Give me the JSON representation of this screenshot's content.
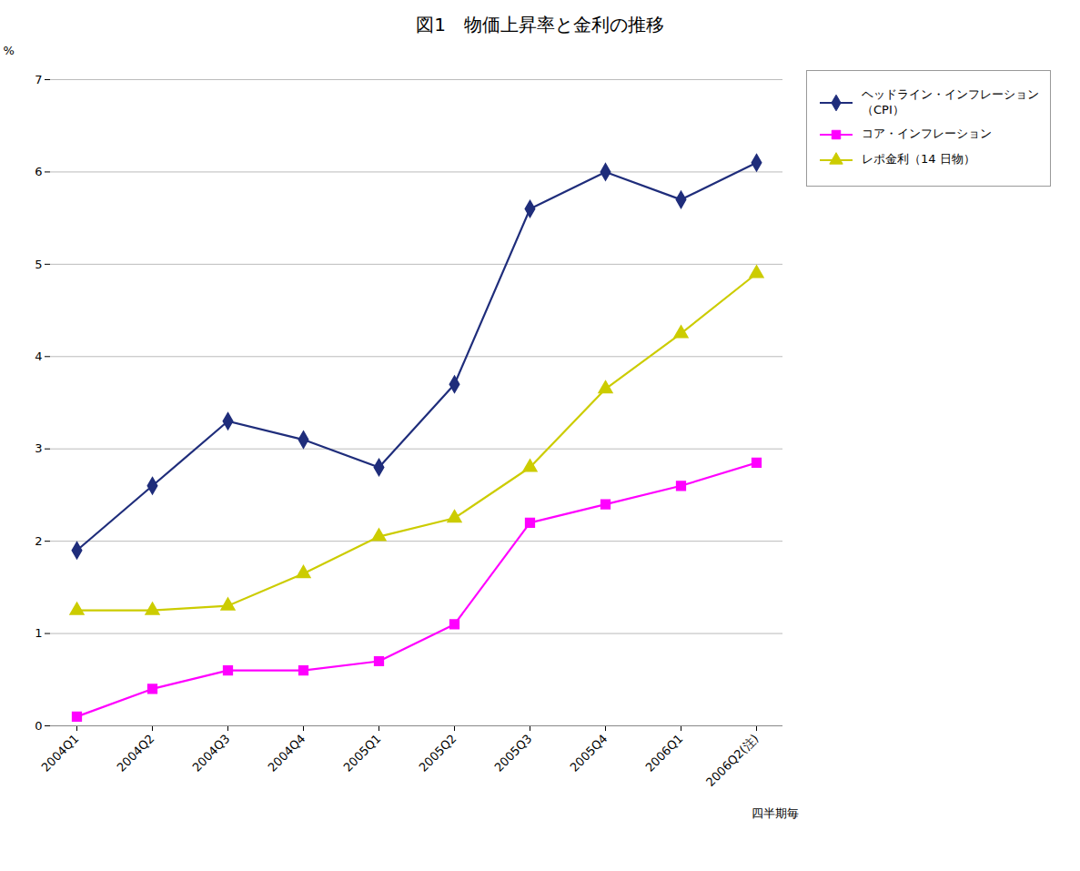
{
  "chart_data": {
    "type": "line",
    "title": "図1　物価上昇率と金利の推移",
    "x_label": "四半期毎",
    "y_label": "%",
    "categories": [
      "2004Q1",
      "2004Q2",
      "2004Q3",
      "2004Q4",
      "2005Q1",
      "2005Q2",
      "2005Q3",
      "2005Q4",
      "2006Q1",
      "2006Q2(注)"
    ],
    "series": [
      {
        "name": "ヘッドライン・インフレーション\n（CPI）",
        "color": "#1F2D7B",
        "marker": "diamond",
        "values": [
          1.9,
          2.6,
          3.3,
          3.1,
          2.8,
          3.7,
          5.6,
          6.0,
          5.7,
          6.1
        ]
      },
      {
        "name": "コア・インフレーション",
        "color": "#FF00FF",
        "marker": "square",
        "values": [
          0.1,
          0.4,
          0.6,
          0.6,
          0.7,
          1.1,
          2.2,
          2.4,
          2.6,
          2.85
        ]
      },
      {
        "name": "レポ金利（14 日物）",
        "color": "#CCCC00",
        "marker": "triangle",
        "values": [
          1.25,
          1.25,
          1.3,
          1.65,
          2.05,
          2.25,
          2.8,
          3.65,
          4.25,
          4.9
        ]
      }
    ],
    "ylim": [
      0,
      7
    ],
    "yticks": [
      0,
      1,
      2,
      3,
      4,
      5,
      6,
      7
    ],
    "grid": true,
    "legend": "upper right"
  }
}
